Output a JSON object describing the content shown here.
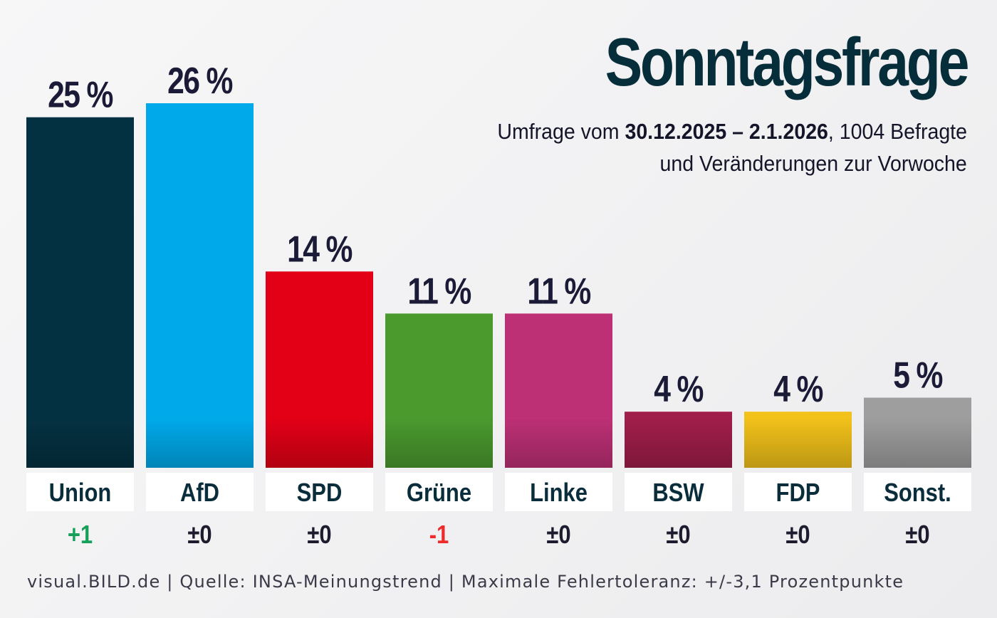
{
  "chart_data": {
    "type": "bar",
    "title": "Sonntagsfrage",
    "subtitle": {
      "prefix": "Umfrage vom ",
      "date_range": "30.12.2025 – 2.1.2026",
      "suffix": ", 1004 Befragte",
      "line2": "und Veränderungen zur Vorwoche"
    },
    "categories": [
      "Union",
      "AfD",
      "SPD",
      "Grüne",
      "Linke",
      "BSW",
      "FDP",
      "Sonst."
    ],
    "values": [
      25,
      26,
      14,
      11,
      11,
      4,
      4,
      5
    ],
    "value_labels": [
      "25 %",
      "26 %",
      "14 %",
      "11 %",
      "11 %",
      "4 %",
      "4 %",
      "5 %"
    ],
    "changes": [
      "+1",
      "±0",
      "±0",
      "-1",
      "±0",
      "±0",
      "±0",
      "±0"
    ],
    "colors": [
      "#043141",
      "#00aaea",
      "#e30016",
      "#4a9a2e",
      "#bd3075",
      "#a11e4a",
      "#f2c21a",
      "#9e9e9e"
    ],
    "change_colors": {
      "positive": "#16a05a",
      "negative": "#ee2a2a",
      "neutral": "#1c1c2e"
    },
    "ylim": [
      0,
      26
    ],
    "xlabel": "",
    "ylabel": ""
  },
  "footer": "visual.BILD.de | Quelle: INSA-Meinungstrend | Maximale Fehlertoleranz: +/-3,1 Prozentpunkte"
}
